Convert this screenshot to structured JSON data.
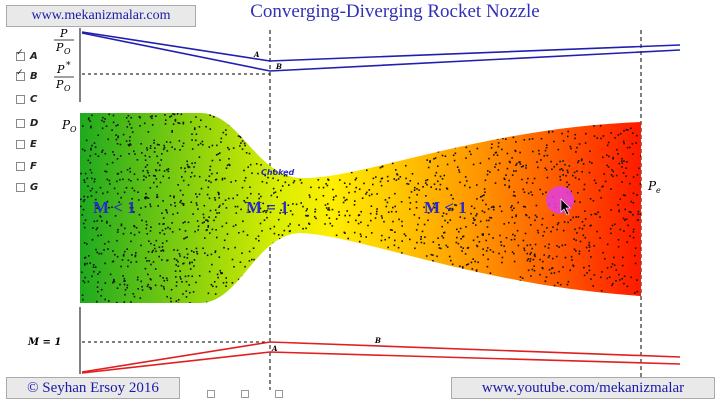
{
  "header": {
    "website": "www.mekanizmalar.com",
    "title": "Converging-Diverging Rocket Nozzle"
  },
  "options": [
    {
      "label": "A",
      "checked": true
    },
    {
      "label": "B",
      "checked": true
    },
    {
      "label": "C",
      "checked": false
    },
    {
      "label": "D",
      "checked": false
    },
    {
      "label": "E",
      "checked": false
    },
    {
      "label": "F",
      "checked": false
    },
    {
      "label": "G",
      "checked": false
    }
  ],
  "pressure_plot": {
    "ratio_top_num": "P",
    "ratio_top_den": "P",
    "ratio_top_den_sub": "O",
    "ratio_star_num": "P",
    "ratio_star_sup": "*",
    "ratio_star_den": "P",
    "ratio_star_den_sub": "O",
    "curve_a_label": "A",
    "curve_b_label": "B",
    "color": "#2020b0"
  },
  "nozzle": {
    "inlet_label": "P",
    "inlet_sub": "O",
    "exit_label": "P",
    "exit_sub": "e",
    "choked_label": "Choked",
    "mach_inlet": "M < 1",
    "mach_throat": "M = 1",
    "mach_exit": "M < 1",
    "inlet_color": "#1faa1f",
    "throat_color": "#ffee00",
    "exit_color": "#ff1a00"
  },
  "mach_plot": {
    "m1_label": "M = 1",
    "curve_a_label": "A",
    "curve_b_label": "B",
    "color": "#e02020"
  },
  "footer": {
    "author": "© Seyhan Ersoy 2016",
    "youtube": "www.youtube.com/mekanizmalar"
  }
}
